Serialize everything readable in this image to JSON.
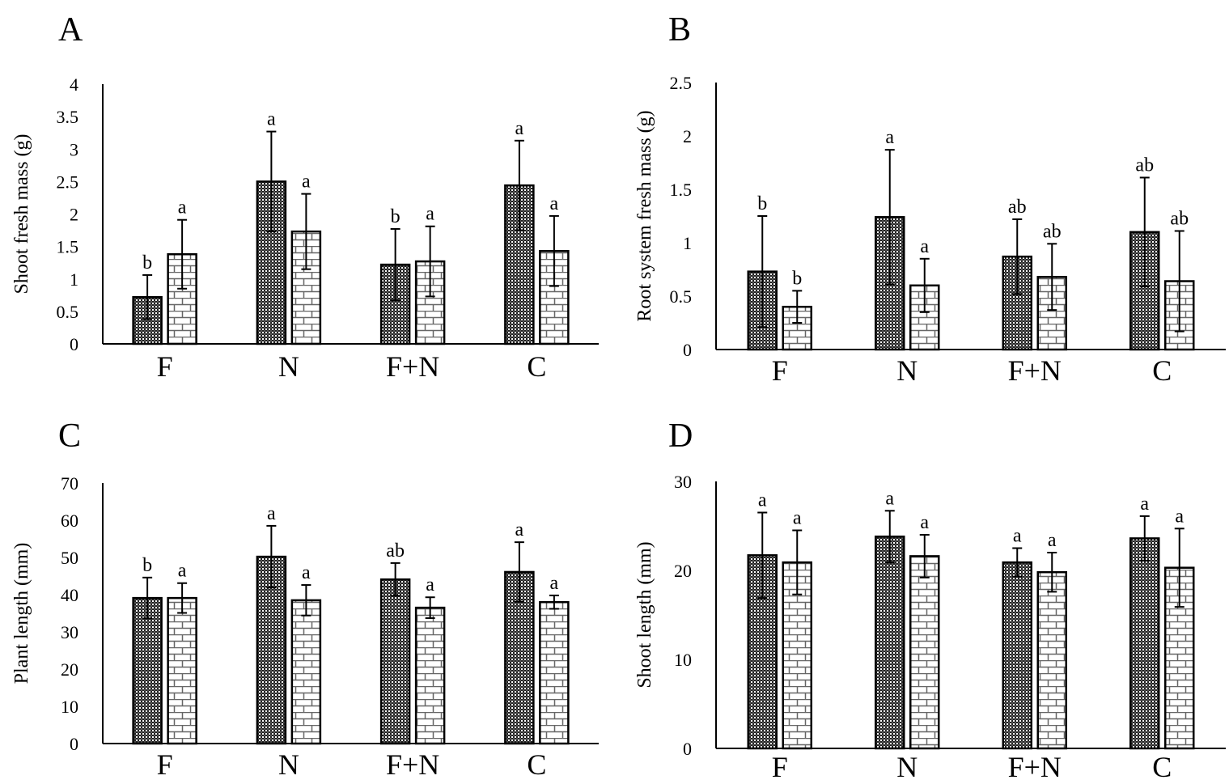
{
  "colors": {
    "series1_fill": "#333333",
    "series2_fill": "#ffffff",
    "axis": "#000000"
  },
  "chart_data": [
    {
      "panel": "A",
      "type": "bar",
      "ylabel": "Shoot fresh mass (g)",
      "ylim": [
        0,
        4
      ],
      "yticks": [
        "0",
        "0.5",
        "1",
        "1.5",
        "2",
        "2.5",
        "3",
        "3.5",
        "4"
      ],
      "categories": [
        "F",
        "N",
        "F+N",
        "C"
      ],
      "grid": false,
      "series": [
        {
          "pattern": "dark-checker",
          "values": [
            0.72,
            2.5,
            1.22,
            2.44
          ],
          "errors": [
            0.34,
            0.77,
            0.55,
            0.69
          ],
          "letters": [
            "b",
            "a",
            "b",
            "a"
          ]
        },
        {
          "pattern": "brick",
          "values": [
            1.38,
            1.73,
            1.27,
            1.43
          ],
          "errors": [
            0.53,
            0.58,
            0.54,
            0.54
          ],
          "letters": [
            "a",
            "a",
            "a",
            "a"
          ]
        }
      ]
    },
    {
      "panel": "B",
      "type": "bar",
      "ylabel": "Root system fresh mass (g)",
      "ylim": [
        0,
        2.5
      ],
      "yticks": [
        "0",
        "0.5",
        "1",
        "1.5",
        "2",
        "2.5"
      ],
      "categories": [
        "F",
        "N",
        "F+N",
        "C"
      ],
      "grid": false,
      "series": [
        {
          "pattern": "dark-checker",
          "values": [
            0.73,
            1.24,
            0.87,
            1.1
          ],
          "errors": [
            0.52,
            0.63,
            0.35,
            0.51
          ],
          "letters": [
            "b",
            "a",
            "ab",
            "ab"
          ]
        },
        {
          "pattern": "brick",
          "values": [
            0.4,
            0.6,
            0.68,
            0.64
          ],
          "errors": [
            0.15,
            0.25,
            0.31,
            0.47
          ],
          "letters": [
            "b",
            "a",
            "ab",
            "ab"
          ]
        }
      ]
    },
    {
      "panel": "C",
      "type": "bar",
      "ylabel": "Plant length  (mm)",
      "ylim": [
        0,
        70
      ],
      "yticks": [
        "0",
        "10",
        "20",
        "30",
        "40",
        "50",
        "60",
        "70"
      ],
      "categories": [
        "F",
        "N",
        "F+N",
        "C"
      ],
      "grid": false,
      "series": [
        {
          "pattern": "dark-checker",
          "values": [
            39.1,
            50.2,
            44.1,
            46.1
          ],
          "errors": [
            5.5,
            8.3,
            4.4,
            8.0
          ],
          "letters": [
            "b",
            "a",
            "ab",
            "a"
          ]
        },
        {
          "pattern": "brick",
          "values": [
            39.1,
            38.5,
            36.5,
            38.0
          ],
          "errors": [
            4.0,
            4.1,
            2.8,
            1.8
          ],
          "letters": [
            "a",
            "a",
            "a",
            "a"
          ]
        }
      ]
    },
    {
      "panel": "D",
      "type": "bar",
      "ylabel": "Shoot length  (mm)",
      "ylim": [
        0,
        30
      ],
      "yticks": [
        "0",
        "10",
        "20",
        "30"
      ],
      "categories": [
        "F",
        "N",
        "F+N",
        "C"
      ],
      "grid": false,
      "series": [
        {
          "pattern": "dark-checker",
          "values": [
            21.7,
            23.8,
            20.9,
            23.6
          ],
          "errors": [
            4.8,
            2.9,
            1.6,
            2.5
          ],
          "letters": [
            "a",
            "a",
            "a",
            "a"
          ]
        },
        {
          "pattern": "brick",
          "values": [
            20.9,
            21.6,
            19.8,
            20.3
          ],
          "errors": [
            3.6,
            2.4,
            2.2,
            4.4
          ],
          "letters": [
            "a",
            "a",
            "a",
            "a"
          ]
        }
      ]
    }
  ]
}
